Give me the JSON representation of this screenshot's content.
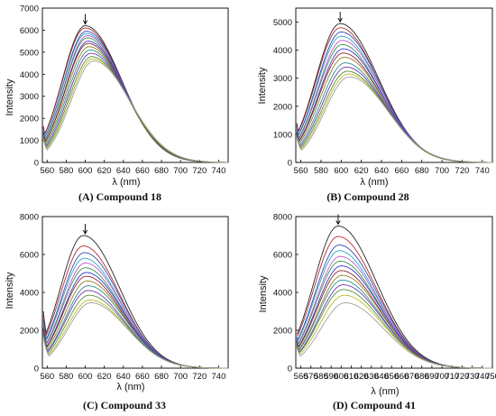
{
  "figure": {
    "palette": [
      "#1a1a1a",
      "#b22222",
      "#2e3fa8",
      "#1fa3c9",
      "#c04cc7",
      "#2f8f3a",
      "#2b2bd9",
      "#8a1e1e",
      "#8a7a1c",
      "#1f8a8a",
      "#6a2ba8",
      "#4a8f2a",
      "#b8b81e",
      "#9a9a9a"
    ]
  },
  "chart_data": [
    {
      "type": "line",
      "caption": "(A) Compound 18",
      "xlabel": "λ (nm)",
      "ylabel": "Intensity",
      "xlim": [
        555,
        750
      ],
      "ylim": [
        0,
        7000
      ],
      "xticks": [
        560,
        580,
        600,
        620,
        640,
        660,
        680,
        700,
        720,
        740
      ],
      "yticks": [
        0,
        1000,
        2000,
        3000,
        4000,
        5000,
        6000,
        7000
      ],
      "arrow_x": 600,
      "series_peak_x": [
        600,
        600,
        601,
        601,
        602,
        602,
        603,
        603,
        604,
        605,
        606,
        607,
        608,
        609
      ],
      "series_peak_y": [
        6200,
        6100,
        5950,
        5850,
        5750,
        5650,
        5500,
        5400,
        5250,
        5100,
        4950,
        4800,
        4700,
        4600
      ],
      "series_start_y": [
        1650,
        1600,
        1550,
        1500,
        1450,
        1400,
        1350,
        1300,
        1250,
        1200,
        1150,
        1100,
        1100,
        1050
      ]
    },
    {
      "type": "line",
      "caption": "(B) Compound 28",
      "xlabel": "λ (nm)",
      "ylabel": "Intensity",
      "xlim": [
        555,
        750
      ],
      "ylim": [
        0,
        5500
      ],
      "xticks": [
        560,
        580,
        600,
        620,
        640,
        660,
        680,
        700,
        720,
        740
      ],
      "yticks": [
        0,
        1000,
        2000,
        3000,
        4000,
        5000
      ],
      "arrow_x": 599,
      "series_peak_x": [
        599,
        599,
        600,
        600,
        601,
        601,
        602,
        602,
        603,
        604,
        605,
        606,
        607,
        608
      ],
      "series_peak_y": [
        4950,
        4800,
        4650,
        4500,
        4350,
        4200,
        4050,
        3900,
        3750,
        3550,
        3400,
        3250,
        3150,
        3050
      ],
      "series_start_y": [
        1400,
        1350,
        1300,
        1250,
        1200,
        1150,
        1100,
        1050,
        1000,
        1000,
        950,
        950,
        900,
        900
      ]
    },
    {
      "type": "line",
      "caption": "(C) Compound 33",
      "xlabel": "λ (nm)",
      "ylabel": "Intensity",
      "xlim": [
        555,
        750
      ],
      "ylim": [
        0,
        8000
      ],
      "xticks": [
        560,
        580,
        600,
        620,
        640,
        660,
        680,
        700,
        720,
        740
      ],
      "yticks": [
        0,
        2000,
        4000,
        6000,
        8000
      ],
      "arrow_x": 600,
      "series_peak_x": [
        598,
        598,
        599,
        599,
        600,
        600,
        601,
        601,
        602,
        603,
        603,
        604,
        605,
        606
      ],
      "series_peak_y": [
        7000,
        6450,
        6100,
        5800,
        5550,
        5300,
        5050,
        4850,
        4600,
        4350,
        4100,
        3850,
        3600,
        3450
      ],
      "series_start_y": [
        3000,
        2800,
        2600,
        2450,
        2300,
        2200,
        2100,
        2000,
        1900,
        1850,
        1800,
        1750,
        1700,
        1650
      ]
    },
    {
      "type": "line",
      "caption": "(D) Compound 41",
      "xlabel": "λ (nm)",
      "ylabel": "Intensity",
      "xlim": [
        555,
        750
      ],
      "ylim": [
        0,
        8000
      ],
      "xticks": [
        560,
        570,
        580,
        590,
        600,
        610,
        620,
        630,
        640,
        650,
        660,
        670,
        680,
        690,
        700,
        710,
        720,
        730,
        740,
        750
      ],
      "yticks": [
        0,
        2000,
        4000,
        6000,
        8000
      ],
      "arrow_x": 597,
      "series_peak_x": [
        597,
        597,
        598,
        598,
        599,
        599,
        600,
        600,
        601,
        601,
        602,
        602,
        603,
        604
      ],
      "series_peak_y": [
        7500,
        6950,
        6500,
        6200,
        5900,
        5650,
        5400,
        5150,
        4900,
        4650,
        4400,
        4150,
        3850,
        3450
      ],
      "series_start_y": [
        1800,
        1700,
        1650,
        1600,
        1550,
        1500,
        1450,
        1400,
        1350,
        1300,
        1250,
        1200,
        1150,
        1100
      ]
    }
  ]
}
